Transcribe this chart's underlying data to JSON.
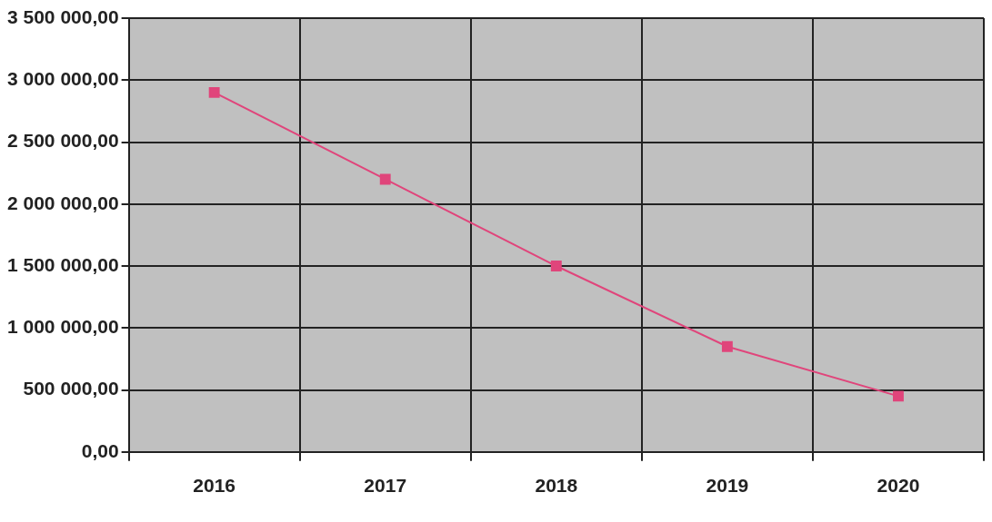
{
  "chart_data": {
    "type": "line",
    "categories": [
      "2016",
      "2017",
      "2018",
      "2019",
      "2020"
    ],
    "series": [
      {
        "color": "#e0457b",
        "values": [
          2900000,
          2200000,
          1500000,
          850000,
          450000
        ]
      }
    ],
    "ylim": [
      0,
      3500000
    ],
    "yticks": [
      {
        "value": 0,
        "label": "0,00"
      },
      {
        "value": 500000,
        "label": "500 000,00"
      },
      {
        "value": 1000000,
        "label": "1 000 000,00"
      },
      {
        "value": 1500000,
        "label": "1 500 000,00"
      },
      {
        "value": 2000000,
        "label": "2 000 000,00"
      },
      {
        "value": 2500000,
        "label": "2 500 000,00"
      },
      {
        "value": 3000000,
        "label": "3 000 000,00"
      },
      {
        "value": 3500000,
        "label": "3 500 000,00"
      }
    ],
    "grid": true,
    "legend": false,
    "marker": "square",
    "line_style": "solid"
  }
}
